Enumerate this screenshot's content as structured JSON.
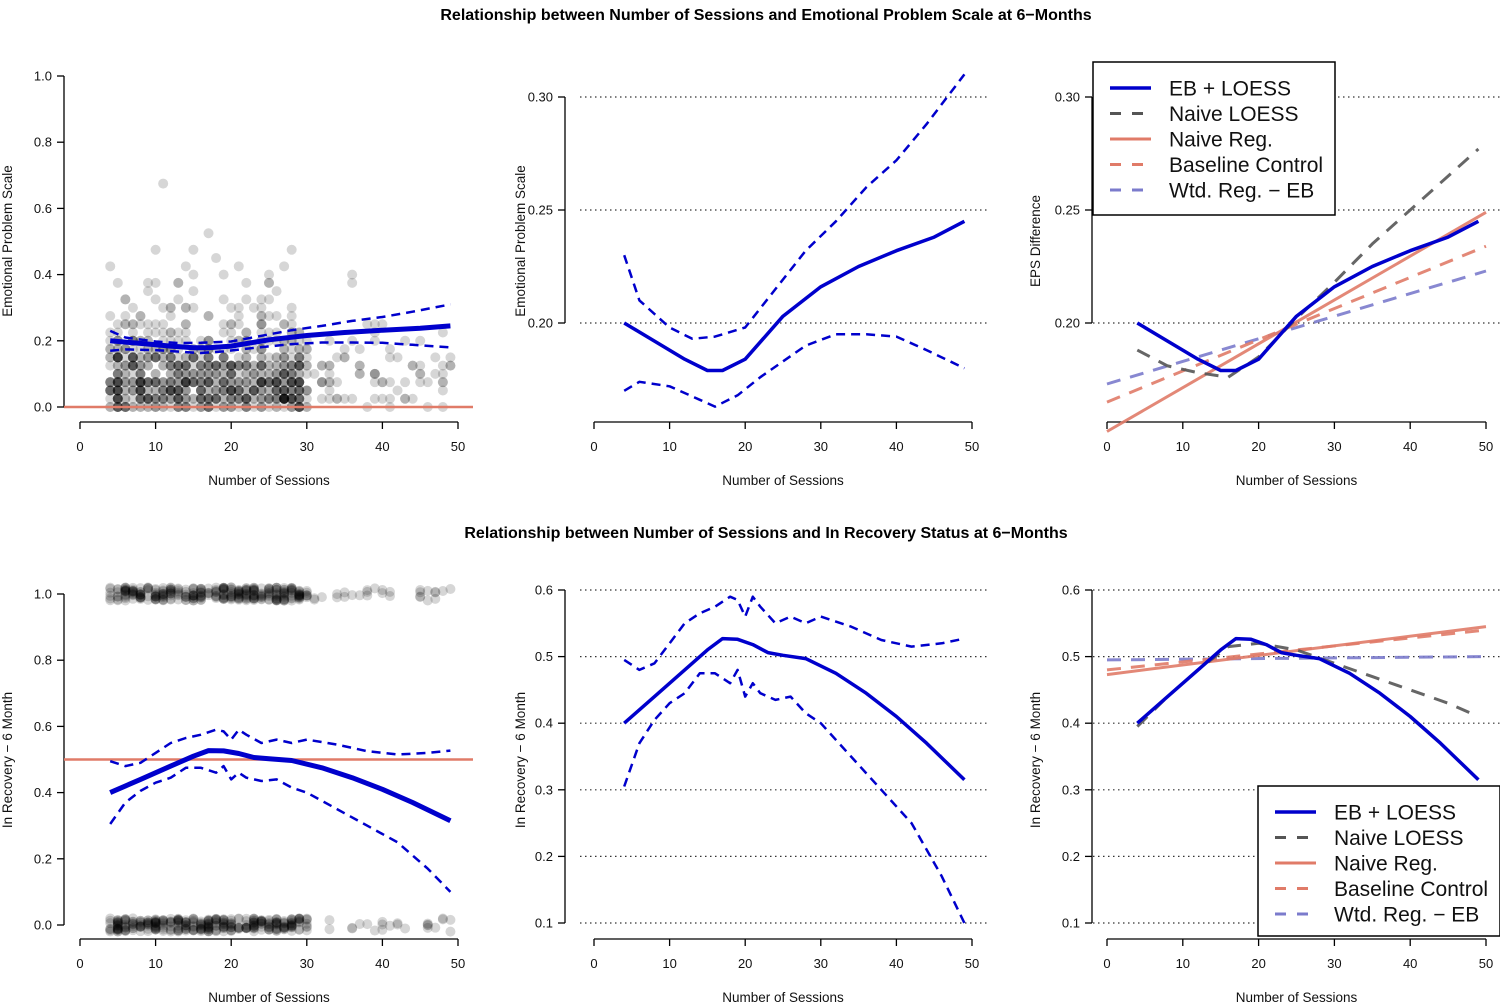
{
  "titles": {
    "top": "Relationship between Number of Sessions and Emotional Problem Scale at 6−Months",
    "bottom": "Relationship between Number of Sessions and In Recovery Status at 6−Months"
  },
  "colors": {
    "eb_loess": "#0000cc",
    "naive_loess": "#555555",
    "naive_reg": "#e07b68",
    "baseline_control": "#e07b68",
    "wtd_reg": "#7b7bcc",
    "points": "#000000"
  },
  "legend": [
    {
      "label": "EB + LOESS",
      "key": "eb_loess",
      "dash": false
    },
    {
      "label": "Naive LOESS",
      "key": "naive_loess",
      "dash": true
    },
    {
      "label": "Naive Reg.",
      "key": "naive_reg",
      "dash": false
    },
    {
      "label": "Baseline Control",
      "key": "baseline_control",
      "dash": true
    },
    {
      "label": "Wtd. Reg. − EB",
      "key": "wtd_reg",
      "dash": true
    }
  ],
  "chart_data": [
    {
      "type": "scatter",
      "panel": "top-left",
      "xlabel": "Number of Sessions",
      "ylabel": "Emotional Problem Scale",
      "xlim": [
        0,
        50
      ],
      "ylim": [
        0,
        1
      ],
      "xticks": [
        0,
        10,
        20,
        30,
        40,
        50
      ],
      "yticks": [
        "0.0",
        "0.2",
        "0.4",
        "0.6",
        "0.8",
        "1.0"
      ],
      "grid": false,
      "scatter": {
        "kind": "continuous",
        "x_range": [
          4,
          49
        ],
        "n": 900
      },
      "hline": {
        "y": 0,
        "key": "naive_reg"
      },
      "series": [
        {
          "name": "EB + LOESS",
          "key": "eb_loess",
          "style": "thick",
          "x": [
            4,
            8,
            12,
            15,
            17,
            20,
            25,
            30,
            35,
            40,
            45,
            49
          ],
          "y": [
            0.2,
            0.192,
            0.184,
            0.179,
            0.179,
            0.184,
            0.203,
            0.216,
            0.225,
            0.232,
            0.238,
            0.245
          ]
        },
        {
          "name": "Upper CI",
          "key": "eb_loess",
          "style": "dash",
          "x": [
            4,
            6,
            10,
            13,
            16,
            20,
            24,
            28,
            32,
            36,
            40,
            44,
            49
          ],
          "y": [
            0.23,
            0.21,
            0.198,
            0.193,
            0.194,
            0.198,
            0.215,
            0.232,
            0.245,
            0.26,
            0.272,
            0.288,
            0.31
          ]
        },
        {
          "name": "Lower CI",
          "key": "eb_loess",
          "style": "dash",
          "x": [
            4,
            6,
            10,
            14,
            16,
            19,
            22,
            25,
            28,
            32,
            36,
            40,
            44,
            49
          ],
          "y": [
            0.17,
            0.174,
            0.172,
            0.166,
            0.163,
            0.168,
            0.176,
            0.183,
            0.19,
            0.195,
            0.195,
            0.194,
            0.188,
            0.18
          ]
        }
      ]
    },
    {
      "type": "line",
      "panel": "top-middle",
      "xlabel": "Number of Sessions",
      "ylabel": "Emotional Problem Scale",
      "xlim": [
        0,
        50
      ],
      "ylim": [
        0.157,
        0.31
      ],
      "xticks": [
        0,
        10,
        20,
        30,
        40,
        50
      ],
      "yticks": [
        "0.20",
        "0.25",
        "0.30"
      ],
      "grid": true,
      "series": [
        {
          "name": "EB + LOESS",
          "key": "eb_loess",
          "style": "solid",
          "x": [
            4,
            8,
            12,
            15,
            17,
            20,
            25,
            30,
            35,
            40,
            45,
            49
          ],
          "y": [
            0.2,
            0.192,
            0.184,
            0.179,
            0.179,
            0.184,
            0.203,
            0.216,
            0.225,
            0.232,
            0.238,
            0.245
          ]
        },
        {
          "name": "Upper CI",
          "key": "eb_loess",
          "style": "dash",
          "x": [
            4,
            6,
            10,
            13,
            16,
            20,
            24,
            28,
            32,
            36,
            40,
            44,
            49
          ],
          "y": [
            0.23,
            0.21,
            0.198,
            0.193,
            0.194,
            0.198,
            0.215,
            0.232,
            0.245,
            0.26,
            0.272,
            0.288,
            0.31
          ]
        },
        {
          "name": "Lower CI",
          "key": "eb_loess",
          "style": "dash",
          "x": [
            4,
            6,
            10,
            14,
            16,
            19,
            22,
            25,
            28,
            32,
            36,
            40,
            44,
            49
          ],
          "y": [
            0.17,
            0.174,
            0.172,
            0.166,
            0.163,
            0.168,
            0.176,
            0.183,
            0.19,
            0.195,
            0.195,
            0.194,
            0.188,
            0.18
          ]
        }
      ]
    },
    {
      "type": "line",
      "panel": "top-right",
      "xlabel": "Number of Sessions",
      "ylabel": "EPS Difference",
      "xlim": [
        0,
        50
      ],
      "ylim": [
        0.157,
        0.31
      ],
      "xticks": [
        0,
        10,
        20,
        30,
        40,
        50
      ],
      "yticks": [
        "0.20",
        "0.25",
        "0.30"
      ],
      "grid": true,
      "legend": "top-left",
      "series": [
        {
          "name": "Wtd. Reg. − EB",
          "key": "wtd_reg",
          "style": "dash",
          "x": [
            0,
            50
          ],
          "y": [
            0.173,
            0.223
          ]
        },
        {
          "name": "Baseline Control",
          "key": "baseline_control",
          "style": "dash",
          "x": [
            0,
            50
          ],
          "y": [
            0.165,
            0.234
          ]
        },
        {
          "name": "Naive Reg.",
          "key": "naive_reg",
          "style": "solid",
          "x": [
            0,
            50
          ],
          "y": [
            0.152,
            0.249
          ]
        },
        {
          "name": "Naive LOESS",
          "key": "naive_loess",
          "style": "dash",
          "x": [
            4,
            8,
            12,
            16,
            20,
            25,
            30,
            35,
            40,
            45,
            49
          ],
          "y": [
            0.188,
            0.181,
            0.178,
            0.176,
            0.185,
            0.202,
            0.218,
            0.235,
            0.25,
            0.265,
            0.277
          ]
        },
        {
          "name": "EB + LOESS",
          "key": "eb_loess",
          "style": "solid",
          "x": [
            4,
            8,
            12,
            15,
            17,
            20,
            25,
            30,
            35,
            40,
            45,
            49
          ],
          "y": [
            0.2,
            0.192,
            0.184,
            0.179,
            0.179,
            0.184,
            0.203,
            0.216,
            0.225,
            0.232,
            0.238,
            0.245
          ]
        }
      ]
    },
    {
      "type": "scatter",
      "panel": "bottom-left",
      "xlabel": "Number of Sessions",
      "ylabel": "In Recovery − 6 Month",
      "xlim": [
        0,
        50
      ],
      "ylim": [
        0,
        1
      ],
      "xticks": [
        0,
        10,
        20,
        30,
        40,
        50
      ],
      "yticks": [
        "0.0",
        "0.2",
        "0.4",
        "0.6",
        "0.8",
        "1.0"
      ],
      "grid": false,
      "scatter": {
        "kind": "binary",
        "x_range": [
          4,
          49
        ],
        "n": 700
      },
      "hline": {
        "y": 0.5,
        "key": "naive_reg"
      },
      "series": [
        {
          "name": "EB + LOESS",
          "key": "eb_loess",
          "style": "thick",
          "x": [
            4,
            8,
            12,
            15,
            17,
            19,
            21,
            23,
            25,
            28,
            32,
            36,
            40,
            44,
            49
          ],
          "y": [
            0.4,
            0.44,
            0.48,
            0.51,
            0.527,
            0.526,
            0.518,
            0.506,
            0.502,
            0.497,
            0.475,
            0.445,
            0.41,
            0.37,
            0.315
          ]
        },
        {
          "name": "Upper CI",
          "key": "eb_loess",
          "style": "dash",
          "x": [
            4,
            6,
            8,
            10,
            12,
            14,
            16,
            18,
            19,
            20,
            21,
            22,
            24,
            26,
            28,
            30,
            34,
            38,
            42,
            46,
            49
          ],
          "y": [
            0.495,
            0.48,
            0.49,
            0.52,
            0.55,
            0.565,
            0.575,
            0.59,
            0.585,
            0.56,
            0.59,
            0.575,
            0.55,
            0.56,
            0.55,
            0.56,
            0.545,
            0.525,
            0.515,
            0.52,
            0.527
          ]
        },
        {
          "name": "Lower CI",
          "key": "eb_loess",
          "style": "dash",
          "x": [
            4,
            6,
            8,
            10,
            12,
            14,
            16,
            18,
            19,
            20,
            21,
            22,
            24,
            26,
            28,
            30,
            34,
            38,
            42,
            46,
            49
          ],
          "y": [
            0.305,
            0.37,
            0.405,
            0.43,
            0.445,
            0.475,
            0.475,
            0.46,
            0.48,
            0.44,
            0.46,
            0.445,
            0.435,
            0.44,
            0.415,
            0.4,
            0.35,
            0.3,
            0.25,
            0.17,
            0.1
          ]
        }
      ]
    },
    {
      "type": "line",
      "panel": "bottom-middle",
      "xlabel": "Number of Sessions",
      "ylabel": "In Recovery − 6 Month",
      "xlim": [
        0,
        50
      ],
      "ylim": [
        0.1,
        0.6
      ],
      "xticks": [
        0,
        10,
        20,
        30,
        40,
        50
      ],
      "yticks": [
        "0.1",
        "0.2",
        "0.3",
        "0.4",
        "0.5",
        "0.6"
      ],
      "grid": true,
      "series": [
        {
          "name": "EB + LOESS",
          "key": "eb_loess",
          "style": "solid",
          "x": [
            4,
            8,
            12,
            15,
            17,
            19,
            21,
            23,
            25,
            28,
            32,
            36,
            40,
            44,
            49
          ],
          "y": [
            0.4,
            0.44,
            0.48,
            0.51,
            0.527,
            0.526,
            0.518,
            0.506,
            0.502,
            0.497,
            0.475,
            0.445,
            0.41,
            0.37,
            0.315
          ]
        },
        {
          "name": "Upper CI",
          "key": "eb_loess",
          "style": "dash",
          "x": [
            4,
            6,
            8,
            10,
            12,
            14,
            16,
            18,
            19,
            20,
            21,
            22,
            24,
            26,
            28,
            30,
            34,
            38,
            42,
            46,
            49
          ],
          "y": [
            0.495,
            0.48,
            0.49,
            0.52,
            0.55,
            0.565,
            0.575,
            0.59,
            0.585,
            0.56,
            0.59,
            0.575,
            0.55,
            0.56,
            0.55,
            0.56,
            0.545,
            0.525,
            0.515,
            0.52,
            0.527
          ]
        },
        {
          "name": "Lower CI",
          "key": "eb_loess",
          "style": "dash",
          "x": [
            4,
            6,
            8,
            10,
            12,
            14,
            16,
            18,
            19,
            20,
            21,
            22,
            24,
            26,
            28,
            30,
            34,
            38,
            42,
            46,
            49
          ],
          "y": [
            0.305,
            0.37,
            0.405,
            0.43,
            0.445,
            0.475,
            0.475,
            0.46,
            0.48,
            0.44,
            0.46,
            0.445,
            0.435,
            0.44,
            0.415,
            0.4,
            0.35,
            0.3,
            0.25,
            0.17,
            0.1
          ]
        }
      ]
    },
    {
      "type": "line",
      "panel": "bottom-right",
      "xlabel": "Number of Sessions",
      "ylabel": "In Recovery − 6 Month",
      "xlim": [
        0,
        50
      ],
      "ylim": [
        0.1,
        0.6
      ],
      "xticks": [
        0,
        10,
        20,
        30,
        40,
        50
      ],
      "yticks": [
        "0.1",
        "0.2",
        "0.3",
        "0.4",
        "0.5",
        "0.6"
      ],
      "grid": true,
      "legend": "bottom-right",
      "series": [
        {
          "name": "Wtd. Reg. − EB",
          "key": "wtd_reg",
          "style": "dash",
          "x": [
            0,
            50
          ],
          "y": [
            0.495,
            0.5
          ]
        },
        {
          "name": "Baseline Control",
          "key": "baseline_control",
          "style": "dash",
          "x": [
            0,
            50
          ],
          "y": [
            0.48,
            0.54
          ]
        },
        {
          "name": "Naive Reg.",
          "key": "naive_reg",
          "style": "solid",
          "x": [
            0,
            50
          ],
          "y": [
            0.473,
            0.545
          ]
        },
        {
          "name": "Naive LOESS",
          "key": "naive_loess",
          "style": "dash",
          "x": [
            4,
            8,
            12,
            16,
            20,
            25,
            30,
            35,
            40,
            45,
            49
          ],
          "y": [
            0.395,
            0.44,
            0.48,
            0.515,
            0.52,
            0.51,
            0.49,
            0.47,
            0.45,
            0.43,
            0.41
          ]
        },
        {
          "name": "EB + LOESS",
          "key": "eb_loess",
          "style": "solid",
          "x": [
            4,
            8,
            12,
            15,
            17,
            19,
            21,
            23,
            25,
            28,
            32,
            36,
            40,
            44,
            49
          ],
          "y": [
            0.4,
            0.44,
            0.48,
            0.51,
            0.527,
            0.526,
            0.518,
            0.506,
            0.502,
            0.497,
            0.475,
            0.445,
            0.41,
            0.37,
            0.315
          ]
        }
      ]
    }
  ]
}
